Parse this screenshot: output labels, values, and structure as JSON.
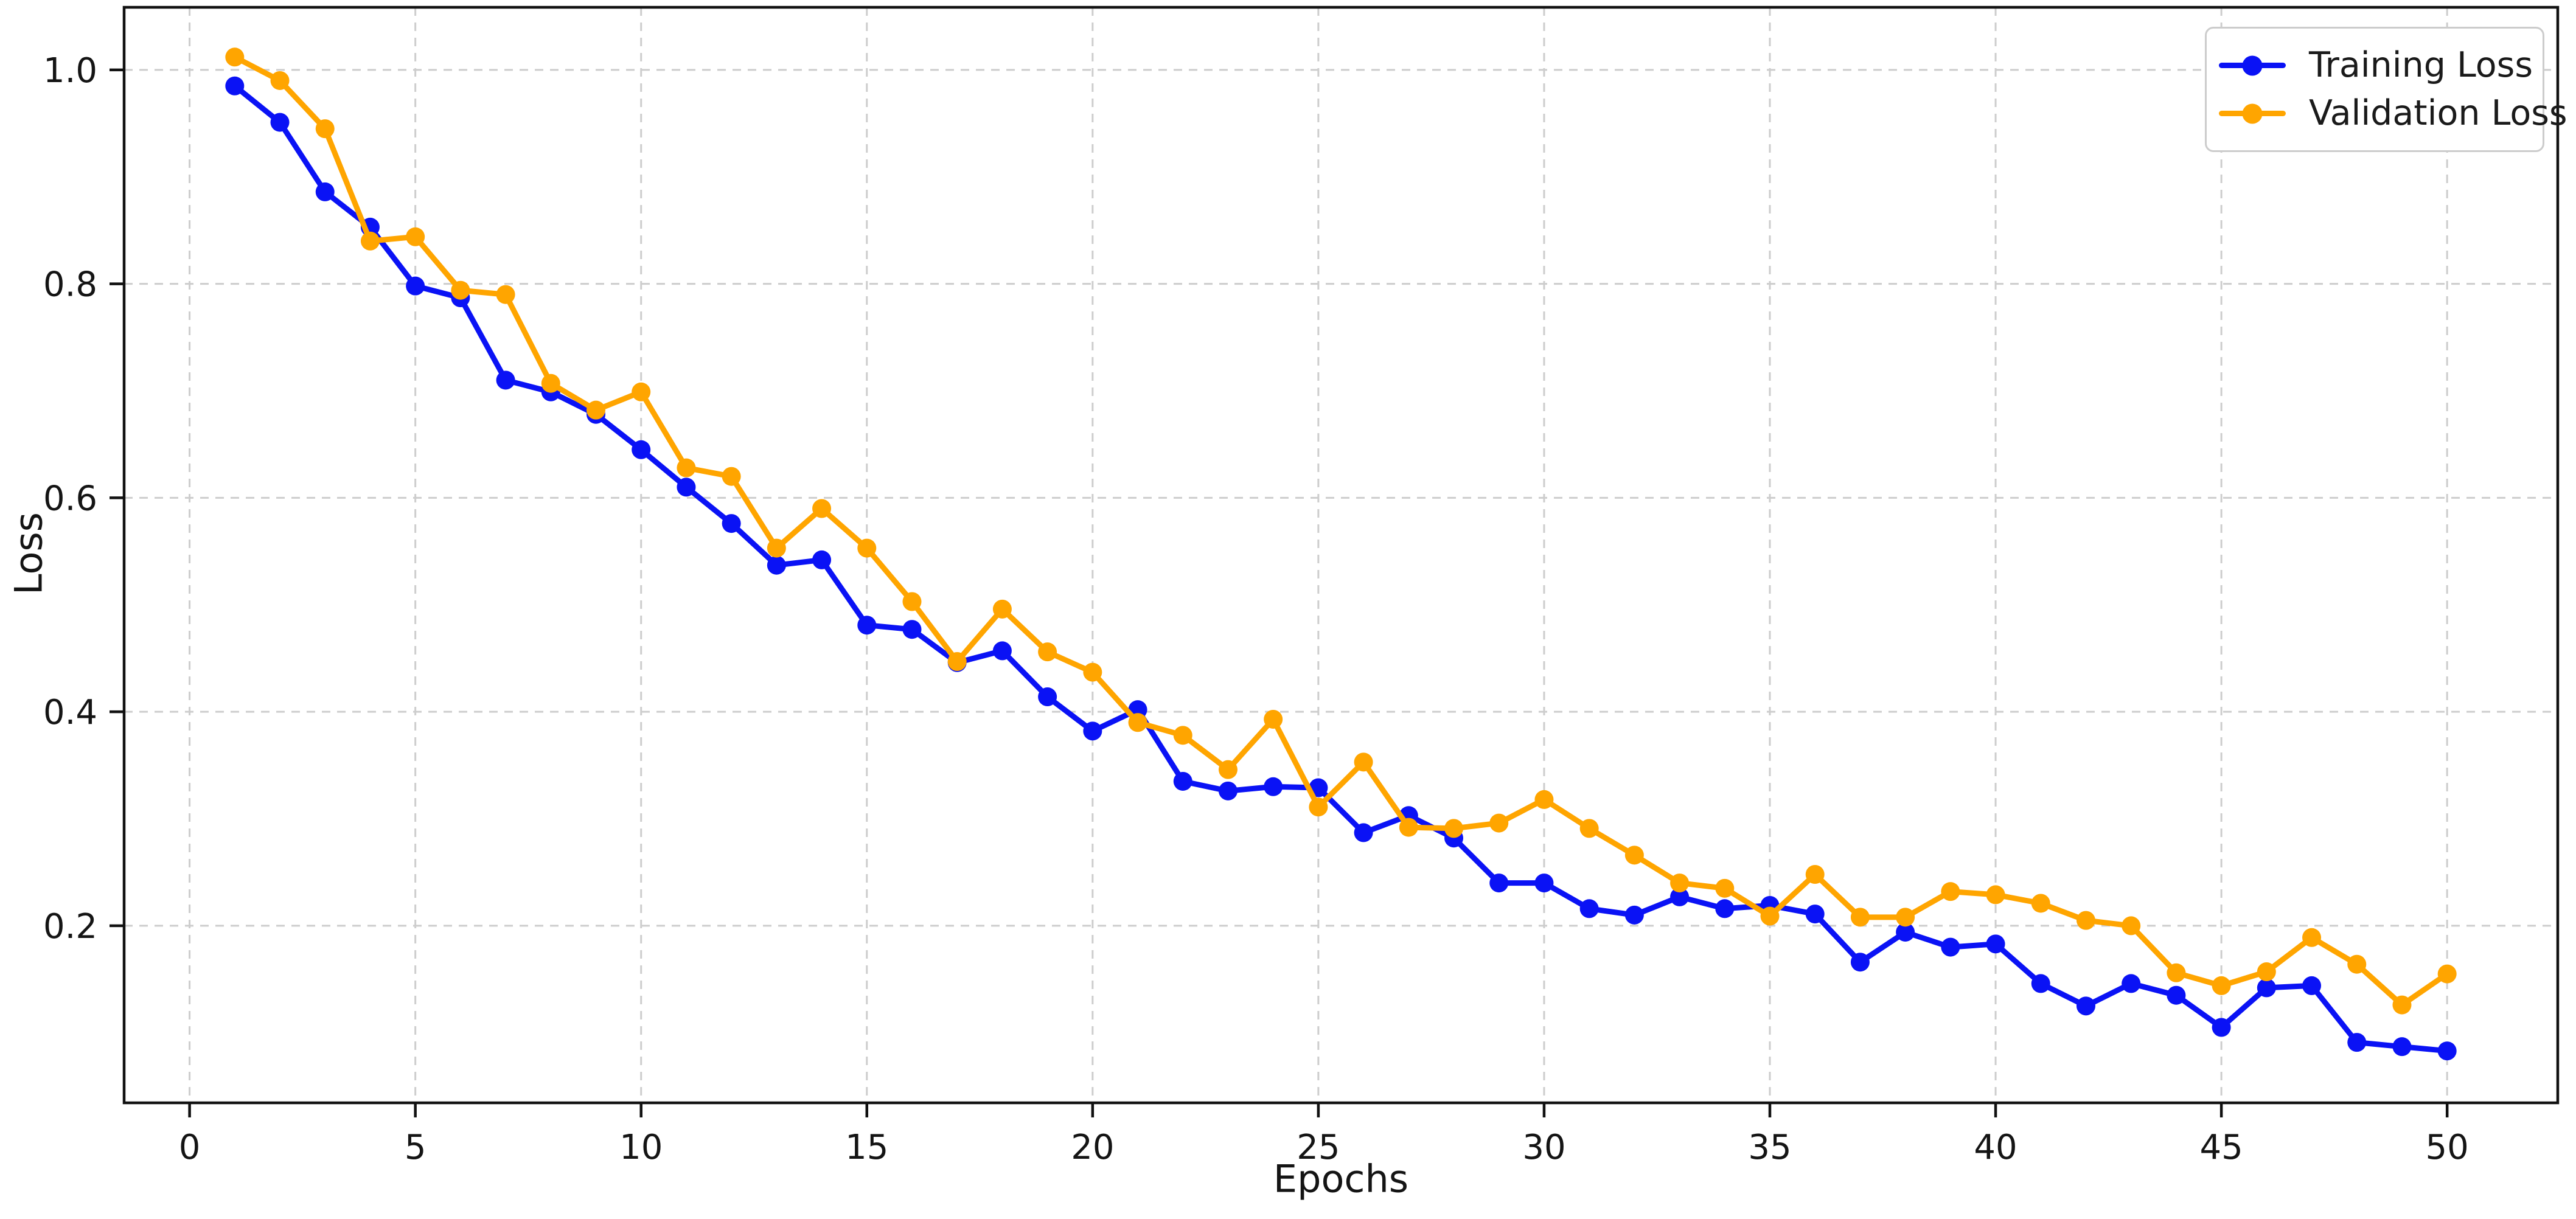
{
  "figure": {
    "background": "#ffffff",
    "text_color": "#141414",
    "spine_color": "#111111",
    "grid_color": "#cdcdcd"
  },
  "chart_data": {
    "type": "line",
    "title": "",
    "xlabel": "Epochs",
    "ylabel": "Loss",
    "xlim": [
      -1.45,
      52.45
    ],
    "ylim": [
      0.0345,
      1.0585
    ],
    "xticks": [
      0,
      5,
      10,
      15,
      20,
      25,
      30,
      35,
      40,
      45,
      50
    ],
    "xtick_labels": [
      "0",
      "5",
      "10",
      "15",
      "20",
      "25",
      "30",
      "35",
      "40",
      "45",
      "50"
    ],
    "yticks": [
      0.2,
      0.4,
      0.6,
      0.8,
      1.0
    ],
    "ytick_labels": [
      "0.2",
      "0.4",
      "0.6",
      "0.8",
      "1.0"
    ],
    "grid": {
      "show": true,
      "style": "dashed",
      "color": "#cdcdcd"
    },
    "legend": {
      "position": "upper-right"
    },
    "x": [
      1,
      2,
      3,
      4,
      5,
      6,
      7,
      8,
      9,
      10,
      11,
      12,
      13,
      14,
      15,
      16,
      17,
      18,
      19,
      20,
      21,
      22,
      23,
      24,
      25,
      26,
      27,
      28,
      29,
      30,
      31,
      32,
      33,
      34,
      35,
      36,
      37,
      38,
      39,
      40,
      41,
      42,
      43,
      44,
      45,
      46,
      47,
      48,
      49,
      50
    ],
    "series": [
      {
        "name": "Training Loss",
        "color": "#0a12f5",
        "values": [
          0.985,
          0.951,
          0.886,
          0.853,
          0.798,
          0.787,
          0.71,
          0.699,
          0.678,
          0.645,
          0.61,
          0.576,
          0.537,
          0.542,
          0.481,
          0.477,
          0.446,
          0.457,
          0.414,
          0.382,
          0.402,
          0.335,
          0.326,
          0.33,
          0.329,
          0.287,
          0.303,
          0.282,
          0.24,
          0.24,
          0.216,
          0.21,
          0.227,
          0.216,
          0.219,
          0.211,
          0.166,
          0.194,
          0.18,
          0.183,
          0.146,
          0.125,
          0.146,
          0.135,
          0.105,
          0.142,
          0.144,
          0.091,
          0.087,
          0.083
        ]
      },
      {
        "name": "Validation Loss",
        "color": "#ffa500",
        "values": [
          1.012,
          0.99,
          0.945,
          0.84,
          0.844,
          0.794,
          0.79,
          0.707,
          0.682,
          0.699,
          0.628,
          0.62,
          0.553,
          0.59,
          0.553,
          0.503,
          0.447,
          0.496,
          0.456,
          0.437,
          0.39,
          0.378,
          0.346,
          0.393,
          0.311,
          0.353,
          0.292,
          0.291,
          0.296,
          0.318,
          0.291,
          0.266,
          0.24,
          0.235,
          0.209,
          0.248,
          0.208,
          0.208,
          0.232,
          0.229,
          0.221,
          0.205,
          0.2,
          0.156,
          0.144,
          0.157,
          0.189,
          0.164,
          0.126,
          0.155
        ]
      }
    ]
  }
}
